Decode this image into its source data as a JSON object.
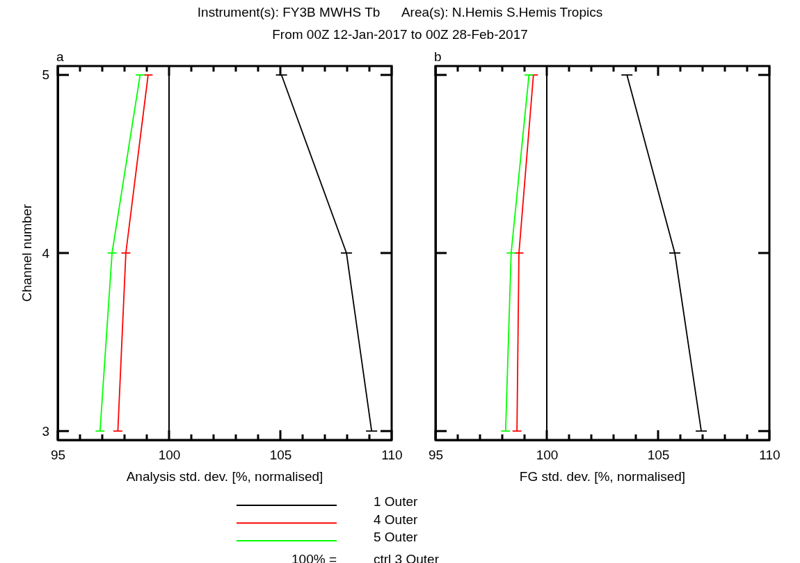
{
  "chart_data": [
    {
      "type": "line",
      "title": "Instrument(s): FY3B MWHS Tb      Area(s): N.Hemis S.Hemis Tropics",
      "subtitle": "From 00Z 12-Jan-2017 to 00Z 28-Feb-2017",
      "xlabel": "Analysis std. dev. [%, normalised]",
      "ylabel": "Channel number",
      "annotations": [
        "a",
        "100% = ctrl 3 Outer"
      ],
      "xlim": [
        95,
        110
      ],
      "xticks": [
        95,
        {
          "value": 96,
          "label": null
        },
        {
          "value": 97,
          "label": null
        },
        {
          "value": 98,
          "label": null
        },
        {
          "value": 99,
          "label": null
        },
        100,
        {
          "value": 101,
          "label": null
        },
        {
          "value": 102,
          "label": null
        },
        {
          "value": 103,
          "label": null
        },
        {
          "value": 104,
          "label": null
        },
        105,
        {
          "value": 106,
          "label": null
        },
        {
          "value": 107,
          "label": null
        },
        {
          "value": 108,
          "label": null
        },
        {
          "value": 109,
          "label": null
        },
        110
      ],
      "ylim": [
        2.95,
        5.05
      ],
      "yticks": [
        3,
        4,
        5
      ],
      "grid": false,
      "marker": "none",
      "line_style": "solid",
      "legend": "bottom",
      "ref_lines": [
        {
          "axis": "x",
          "value": 100,
          "color": "#000000"
        }
      ],
      "series": [
        {
          "name": "1 Outer",
          "color": "#000000",
          "x": [
            105.05,
            107.97,
            109.1
          ],
          "values": [
            5,
            4,
            3
          ],
          "xerrors": [
            0.25,
            0.25,
            0.25
          ]
        },
        {
          "name": "4 Outer",
          "color": "#ff0000",
          "x": [
            99.06,
            98.06,
            97.7
          ],
          "values": [
            5,
            4,
            3
          ],
          "xerrors": [
            0.2,
            0.2,
            0.2
          ]
        },
        {
          "name": "5 Outer",
          "color": "#00ff00",
          "x": [
            98.7,
            97.44,
            96.9
          ],
          "values": [
            5,
            4,
            3
          ],
          "xerrors": [
            0.2,
            0.2,
            0.2
          ]
        }
      ]
    },
    {
      "type": "line",
      "xlabel": "FG std. dev. [%, normalised]",
      "annotations": [
        "b"
      ],
      "xlim": [
        95,
        110
      ],
      "xticks": [
        95,
        {
          "value": 96,
          "label": null
        },
        {
          "value": 97,
          "label": null
        },
        {
          "value": 98,
          "label": null
        },
        {
          "value": 99,
          "label": null
        },
        100,
        {
          "value": 101,
          "label": null
        },
        {
          "value": 102,
          "label": null
        },
        {
          "value": 103,
          "label": null
        },
        {
          "value": 104,
          "label": null
        },
        105,
        {
          "value": 106,
          "label": null
        },
        {
          "value": 107,
          "label": null
        },
        {
          "value": 108,
          "label": null
        },
        {
          "value": 109,
          "label": null
        },
        110
      ],
      "ylim": [
        2.95,
        5.05
      ],
      "yticks": [
        3,
        4,
        5
      ],
      "tick_labels": "x",
      "grid": false,
      "marker": "none",
      "line_style": "solid",
      "ref_lines": [
        {
          "axis": "x",
          "value": 100,
          "color": "#000000"
        }
      ],
      "series": [
        {
          "color": "#000000",
          "x": [
            103.6,
            105.75,
            106.94
          ],
          "values": [
            5,
            4,
            3
          ],
          "xerrors": [
            0.25,
            0.25,
            0.25
          ]
        },
        {
          "color": "#ff0000",
          "x": [
            99.4,
            98.75,
            98.66
          ],
          "values": [
            5,
            4,
            3
          ],
          "xerrors": [
            0.2,
            0.2,
            0.2
          ]
        },
        {
          "color": "#00ff00",
          "x": [
            99.2,
            98.4,
            98.15
          ],
          "values": [
            5,
            4,
            3
          ],
          "xerrors": [
            0.2,
            0.2,
            0.2
          ]
        }
      ]
    }
  ]
}
